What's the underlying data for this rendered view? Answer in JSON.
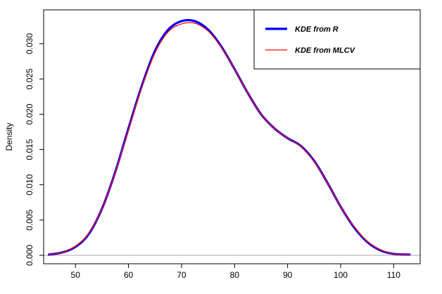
{
  "chart_data": {
    "type": "line",
    "title": "",
    "xlabel": "",
    "ylabel": "Density",
    "xlim": [
      44,
      115
    ],
    "ylim": [
      -0.0012,
      0.0348
    ],
    "x_ticks": [
      50,
      60,
      70,
      80,
      90,
      100,
      110
    ],
    "y_ticks": [
      0.0,
      0.005,
      0.01,
      0.015,
      0.02,
      0.025,
      0.03
    ],
    "y_tick_labels": [
      "0.000",
      "0.005",
      "0.010",
      "0.015",
      "0.020",
      "0.025",
      "0.030"
    ],
    "baseline": 0,
    "grid": false,
    "legend_position": "top-right",
    "series": [
      {
        "name": "KDE from R",
        "color": "#0000ff",
        "line_width": "thick",
        "x": [
          45,
          47.5,
          50,
          52.5,
          55,
          57.5,
          60,
          62.5,
          65,
          67.5,
          70,
          72.5,
          75,
          77.5,
          80,
          82.5,
          85,
          87.5,
          90,
          92.5,
          95,
          97.5,
          100,
          102.5,
          105,
          107.5,
          110,
          113
        ],
        "y": [
          0.0001,
          0.0004,
          0.0012,
          0.003,
          0.0066,
          0.0118,
          0.018,
          0.024,
          0.029,
          0.032,
          0.0332,
          0.0332,
          0.032,
          0.0296,
          0.0264,
          0.023,
          0.02,
          0.018,
          0.0166,
          0.0155,
          0.0134,
          0.0103,
          0.0069,
          0.004,
          0.0019,
          0.0007,
          0.0002,
          0.0001
        ]
      },
      {
        "name": "KDE from MLCV",
        "color": "#ff0000",
        "line_width": "thin",
        "x": [
          45,
          47.5,
          50,
          52.5,
          55,
          57.5,
          60,
          62.5,
          65,
          67.5,
          70,
          72.5,
          75,
          77.5,
          80,
          82.5,
          85,
          87.5,
          90,
          92.5,
          95,
          97.5,
          100,
          102.5,
          105,
          107.5,
          110,
          113
        ],
        "y": [
          0.0001,
          0.0004,
          0.0013,
          0.0031,
          0.0066,
          0.0117,
          0.0178,
          0.0238,
          0.0287,
          0.0317,
          0.0328,
          0.0329,
          0.0318,
          0.0295,
          0.0264,
          0.023,
          0.02,
          0.018,
          0.0166,
          0.0154,
          0.0133,
          0.0103,
          0.0069,
          0.0041,
          0.002,
          0.0008,
          0.0002,
          0.0001
        ]
      }
    ]
  }
}
